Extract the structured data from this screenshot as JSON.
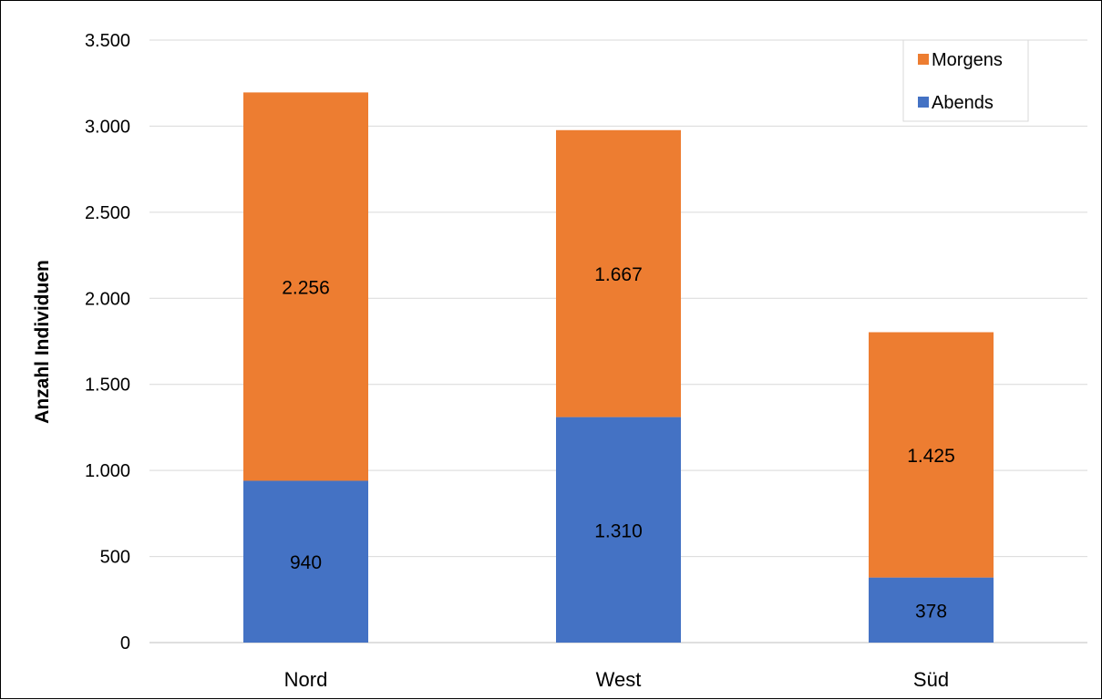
{
  "chart_data": {
    "type": "bar",
    "stacked": true,
    "categories": [
      "Nord",
      "West",
      "Süd"
    ],
    "series": [
      {
        "name": "Abends",
        "values": [
          940,
          1310,
          378
        ],
        "labels": [
          "940",
          "1.310",
          "378"
        ],
        "color": "#4472C4"
      },
      {
        "name": "Morgens",
        "values": [
          2256,
          1667,
          1425
        ],
        "labels": [
          "2.256",
          "1.667",
          "1.425"
        ],
        "color": "#ED7D31"
      }
    ],
    "ylabel": "Anzahl Individuen",
    "ylim": [
      0,
      3500
    ],
    "yticks": [
      0,
      500,
      1000,
      1500,
      2000,
      2500,
      3000,
      3500
    ],
    "ytick_labels": [
      "0",
      "500",
      "1.000",
      "1.500",
      "2.000",
      "2.500",
      "3.000",
      "3.500"
    ],
    "grid": true,
    "legend": {
      "position": "top-right",
      "order": [
        "Morgens",
        "Abends"
      ]
    },
    "gridline_color": "#D9D9D9"
  }
}
